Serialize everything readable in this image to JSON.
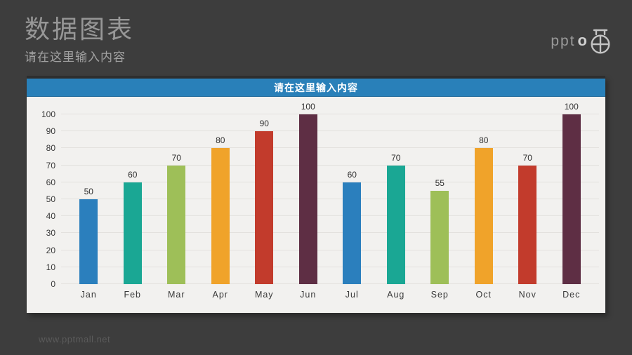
{
  "header": {
    "title": "数据图表",
    "subtitle": "请在这里输入内容"
  },
  "logo": {
    "text": "ppt",
    "o": "o",
    "icon": "stopwatch-icon",
    "color": "#c4c4c4"
  },
  "panel": {
    "header_color": "#2980b9",
    "body_color": "#f2f1ef"
  },
  "footer": {
    "watermark": "www.pptmall.net"
  },
  "chart_data": {
    "type": "bar",
    "title": "请在这里输入内容",
    "categories": [
      "Jan",
      "Feb",
      "Mar",
      "Apr",
      "May",
      "Jun",
      "Jul",
      "Aug",
      "Sep",
      "Oct",
      "Nov",
      "Dec"
    ],
    "values": [
      50,
      60,
      70,
      80,
      90,
      100,
      60,
      70,
      55,
      80,
      70,
      100
    ],
    "bar_colors": [
      "#2b7fbd",
      "#1aa794",
      "#9ebf58",
      "#f0a32a",
      "#c23b2c",
      "#5e2e44",
      "#2b7fbd",
      "#1aa794",
      "#9ebf58",
      "#f0a32a",
      "#c23b2c",
      "#5e2e44"
    ],
    "xlabel": "",
    "ylabel": "",
    "ylim": [
      0,
      100
    ],
    "ytick_step": 10,
    "yticks": [
      0,
      10,
      20,
      30,
      40,
      50,
      60,
      70,
      80,
      90,
      100
    ],
    "grid": true,
    "gridline_color": "#e3e1de",
    "legend": "none",
    "data_labels": true
  }
}
